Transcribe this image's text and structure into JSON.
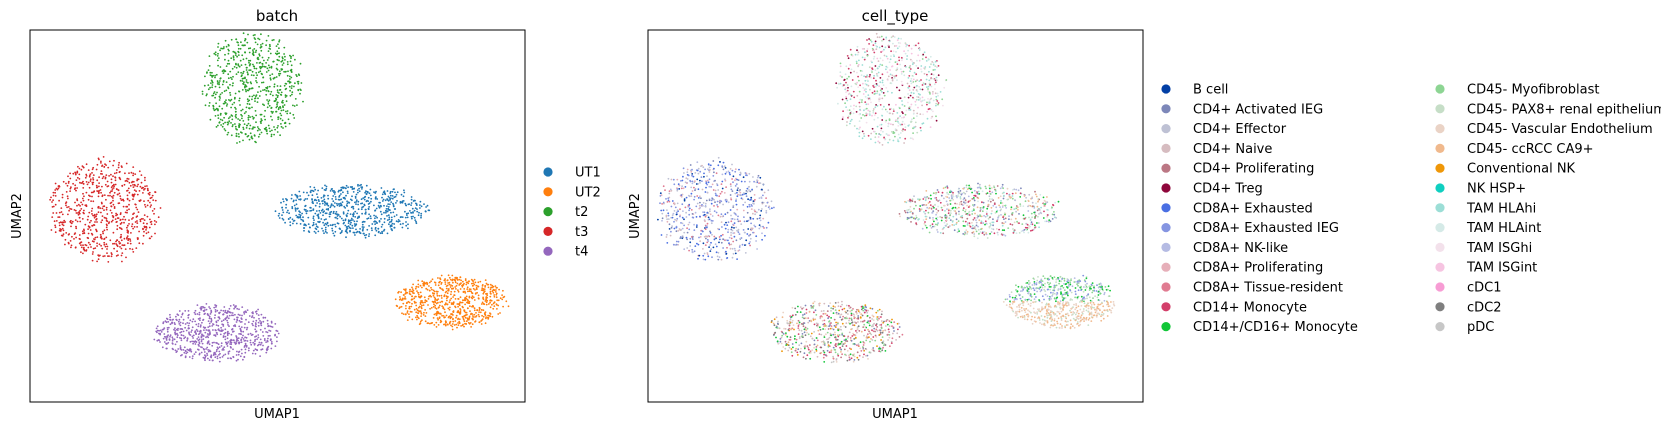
{
  "chart_data": [
    {
      "type": "scatter",
      "title": "batch",
      "xlabel": "UMAP1",
      "ylabel": "UMAP2",
      "xlim": [
        -10,
        10
      ],
      "ylim": [
        -10,
        10
      ],
      "grid": false,
      "legend_position": "right",
      "legend": [
        {
          "label": "UT1",
          "color": "#1f77b4"
        },
        {
          "label": "UT2",
          "color": "#ff7f0e"
        },
        {
          "label": "t2",
          "color": "#2ca02c"
        },
        {
          "label": "t3",
          "color": "#d62728"
        },
        {
          "label": "t4",
          "color": "#9467bd"
        }
      ],
      "clusters": [
        {
          "label": "t2",
          "cx": -1.0,
          "cy": 6.9,
          "rx": 2.0,
          "ry": 2.9
        },
        {
          "label": "t3",
          "cx": -7.0,
          "cy": 0.3,
          "rx": 2.2,
          "ry": 2.7
        },
        {
          "label": "UT1",
          "cx": 3.0,
          "cy": 0.3,
          "rx": 3.0,
          "ry": 1.4
        },
        {
          "label": "t4",
          "cx": -2.4,
          "cy": -6.3,
          "rx": 2.5,
          "ry": 1.5
        },
        {
          "label": "UT2",
          "cx": 7.0,
          "cy": -4.6,
          "rx": 2.2,
          "ry": 1.4
        }
      ]
    },
    {
      "type": "scatter",
      "title": "cell_type",
      "xlabel": "UMAP1",
      "ylabel": "UMAP2",
      "xlim": [
        -10,
        10
      ],
      "ylim": [
        -10,
        10
      ],
      "grid": false,
      "legend_position": "right",
      "legend": [
        {
          "label": "B cell",
          "color": "#023fa5"
        },
        {
          "label": "CD4+ Activated IEG",
          "color": "#7d87b9"
        },
        {
          "label": "CD4+ Effector",
          "color": "#bec1d4"
        },
        {
          "label": "CD4+ Naive",
          "color": "#d6bcc0"
        },
        {
          "label": "CD4+ Proliferating",
          "color": "#bb7784"
        },
        {
          "label": "CD4+ Treg",
          "color": "#8e063b"
        },
        {
          "label": "CD8A+ Exhausted",
          "color": "#4a6fe3"
        },
        {
          "label": "CD8A+ Exhausted IEG",
          "color": "#8595e1"
        },
        {
          "label": "CD8A+ NK-like",
          "color": "#b5bbe3"
        },
        {
          "label": "CD8A+ Proliferating",
          "color": "#e6afb9"
        },
        {
          "label": "CD8A+ Tissue-resident",
          "color": "#e07b91"
        },
        {
          "label": "CD14+ Monocyte",
          "color": "#d33f6a"
        },
        {
          "label": "CD14+/CD16+ Monocyte",
          "color": "#11c638"
        },
        {
          "label": "CD45- Myofibroblast",
          "color": "#8dd593"
        },
        {
          "label": "CD45- PAX8+ renal epithelium",
          "color": "#c6dec7"
        },
        {
          "label": "CD45- Vascular Endothelium",
          "color": "#ead3c6"
        },
        {
          "label": "CD45- ccRCC CA9+",
          "color": "#f0b98d"
        },
        {
          "label": "Conventional NK",
          "color": "#ef9708"
        },
        {
          "label": "NK HSP+",
          "color": "#0fcfc0"
        },
        {
          "label": "TAM HLAhi",
          "color": "#9cded6"
        },
        {
          "label": "TAM HLAint",
          "color": "#d5eae7"
        },
        {
          "label": "TAM ISGhi",
          "color": "#f3e1eb"
        },
        {
          "label": "TAM ISGint",
          "color": "#f6c4e1"
        },
        {
          "label": "cDC1",
          "color": "#f79cd4"
        },
        {
          "label": "cDC2",
          "color": "#7f7f7f"
        },
        {
          "label": "pDC",
          "color": "#c7c7c7"
        }
      ],
      "clusters": [
        {
          "label": "TAM HLAhi / TAM HLAint",
          "cx": -0.2,
          "cy": 6.8,
          "rx": 2.2,
          "ry": 2.9
        },
        {
          "label": "CD8A+ / CD4+ T cells",
          "cx": -7.3,
          "cy": 0.3,
          "rx": 2.3,
          "ry": 2.7
        },
        {
          "label": "mixed",
          "cx": 3.4,
          "cy": 0.3,
          "rx": 3.2,
          "ry": 1.4
        },
        {
          "label": "mixed",
          "cx": -2.5,
          "cy": -6.2,
          "rx": 2.6,
          "ry": 1.6
        },
        {
          "label": "CD45- epithelium / endothelium",
          "cx": 6.7,
          "cy": -4.6,
          "rx": 2.2,
          "ry": 1.4
        }
      ]
    }
  ]
}
